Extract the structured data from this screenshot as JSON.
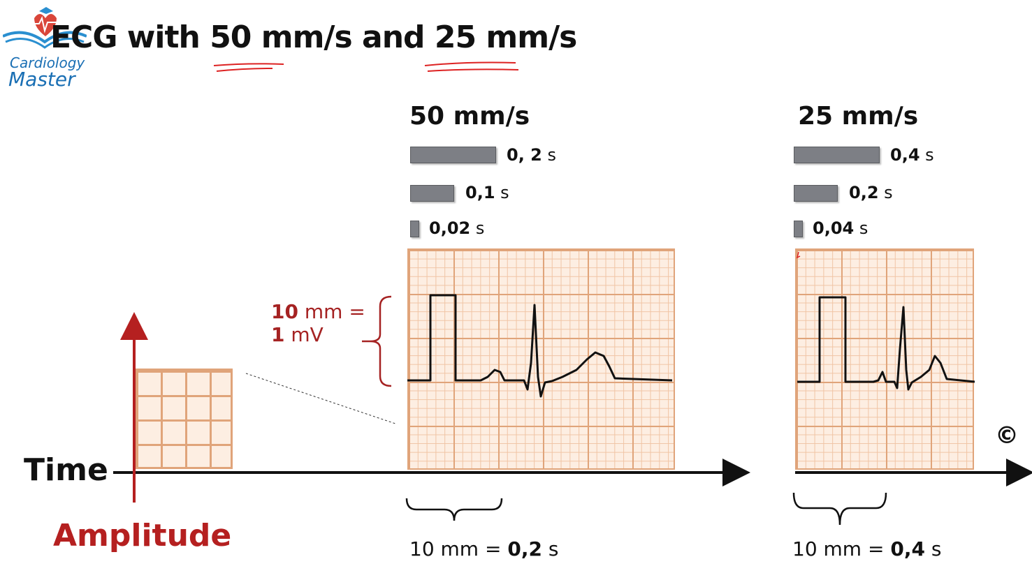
{
  "logo": {
    "line1": "Cardiology",
    "line2": "Master"
  },
  "title": {
    "prefix": "ECG with ",
    "speed1": "50 mm/s",
    "mid": " and ",
    "speed2": "25 mm/s"
  },
  "panel_50": {
    "heading": "50 mm/s",
    "bars": [
      {
        "value": "0, 2",
        "unit": "s"
      },
      {
        "value": "0,1",
        "unit": "s"
      },
      {
        "value": "0,02",
        "unit": "s"
      }
    ],
    "amplitude_label": {
      "value1": "10",
      "unit1": "mm =",
      "value2": "1",
      "unit2": "mV"
    },
    "caption": {
      "left": "10 mm = ",
      "right": "0,2",
      "unit": "s"
    }
  },
  "panel_25": {
    "heading": "25 mm/s",
    "bars": [
      {
        "value": "0,4",
        "unit": "s"
      },
      {
        "value": "0,2",
        "unit": "s"
      },
      {
        "value": "0,04",
        "unit": "s"
      }
    ],
    "caption": {
      "left": "10 mm = ",
      "right": "0,4",
      "unit": "s"
    }
  },
  "axes": {
    "time": "Time",
    "amplitude": "Amplitude"
  },
  "copyright": "©",
  "colors": {
    "accent_red": "#b52020",
    "grid": "#e0a47a",
    "logo_blue": "#1a6fb4"
  }
}
